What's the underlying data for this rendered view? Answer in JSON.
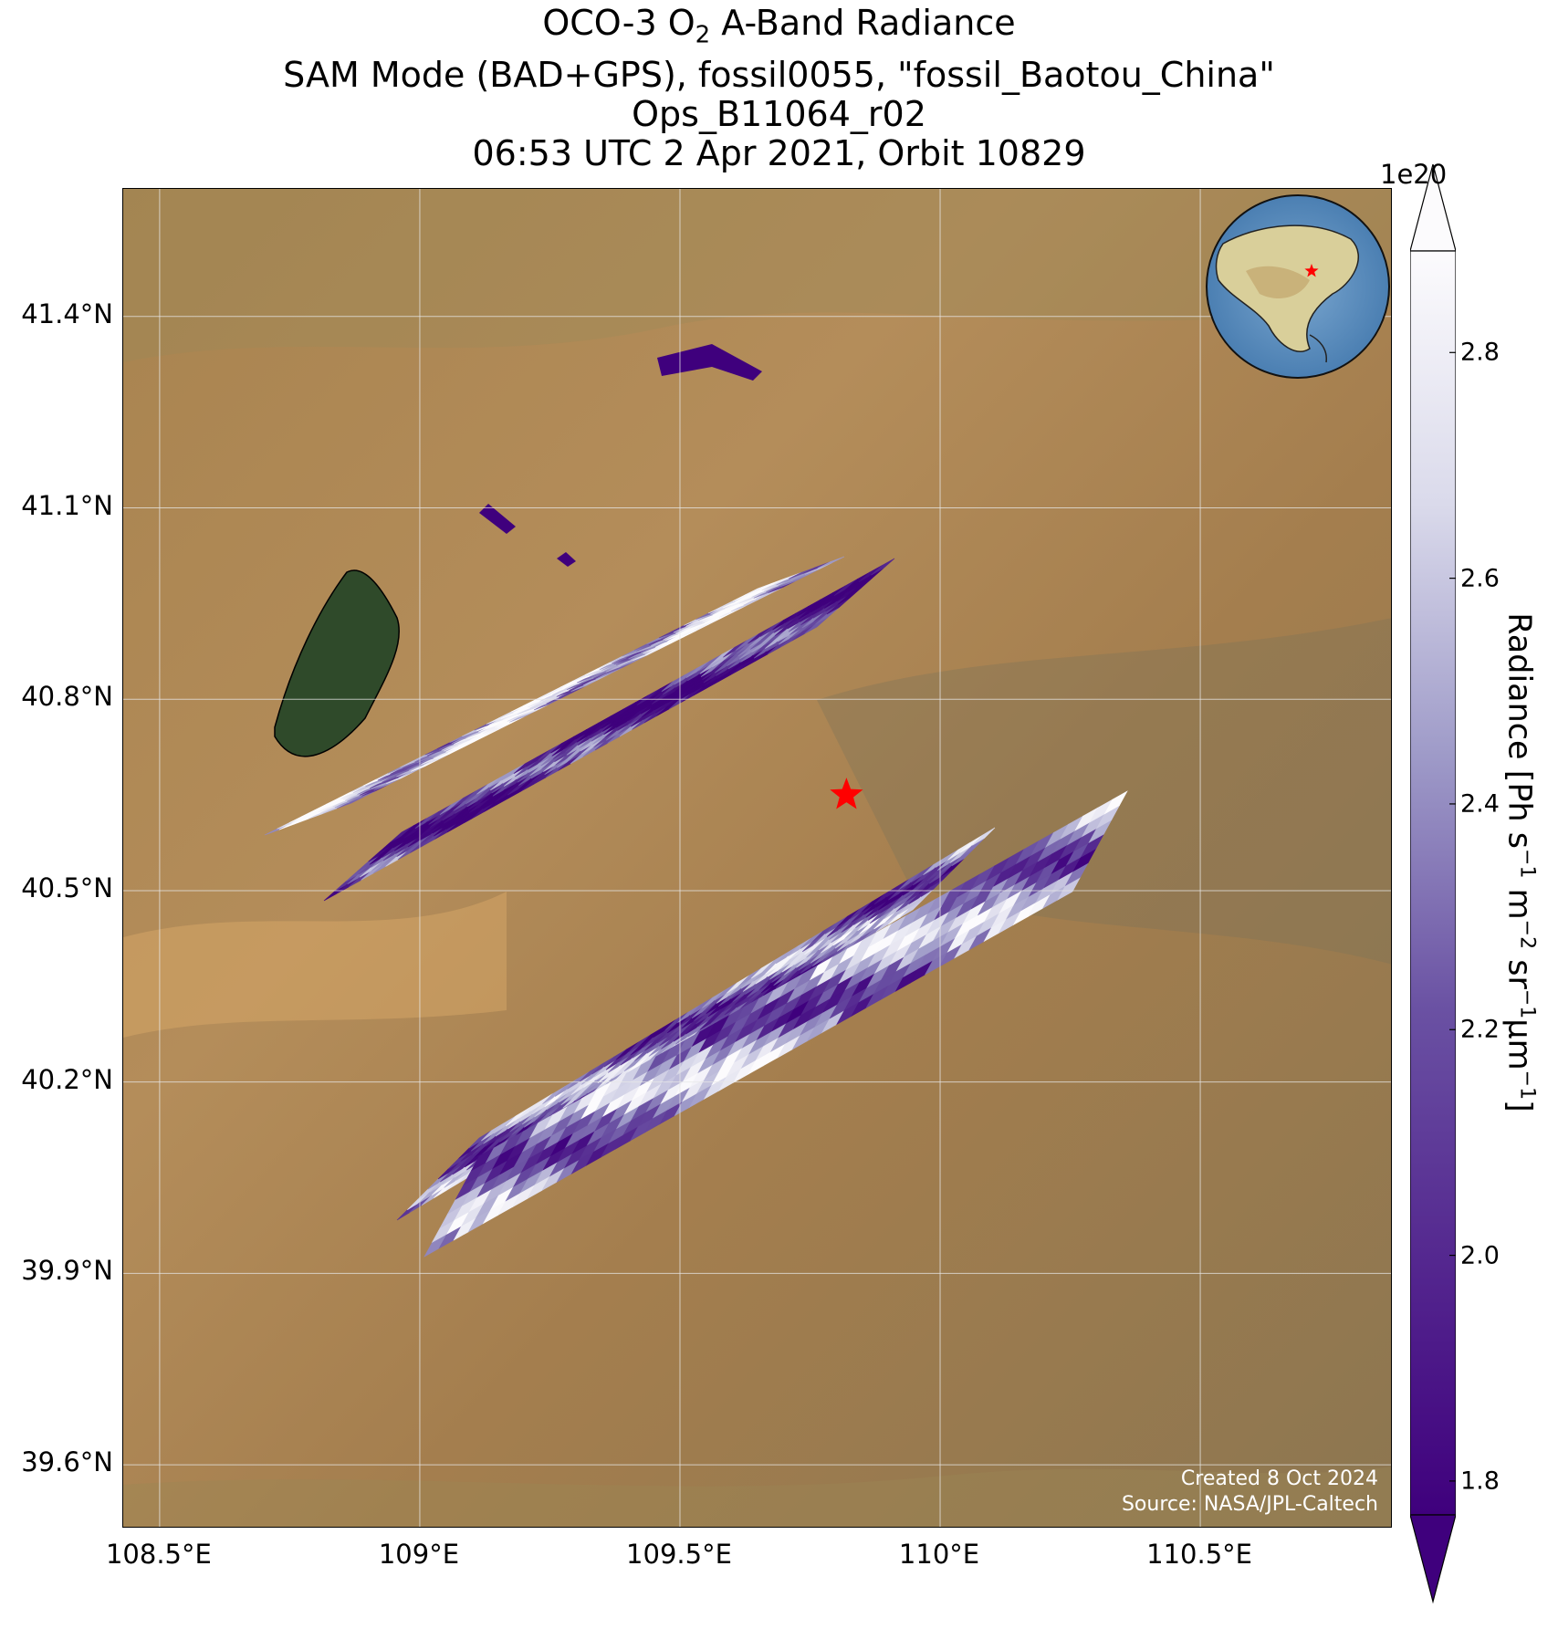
{
  "title": {
    "line1_pre": "OCO-3 O",
    "line1_sub": "2",
    "line1_post": " A-Band Radiance",
    "line2": "SAM Mode (BAD+GPS), fossil0055, \"fossil_Baotou_China\"",
    "line3": "Ops_B11064_r02",
    "line4": "06:53 UTC 2 Apr 2021, Orbit 10829"
  },
  "axes": {
    "lat_ticks": [
      "41.4°N",
      "41.1°N",
      "40.8°N",
      "40.5°N",
      "40.2°N",
      "39.9°N",
      "39.6°N"
    ],
    "lon_ticks": [
      "108.5°E",
      "109°E",
      "109.5°E",
      "110°E",
      "110.5°E"
    ],
    "lat_values": [
      41.4,
      41.1,
      40.8,
      40.5,
      40.2,
      39.9,
      39.6
    ],
    "lon_values": [
      108.5,
      109.0,
      109.5,
      110.0,
      110.5
    ],
    "lon_range": [
      108.43,
      110.87
    ],
    "lat_range": [
      39.5,
      41.6
    ],
    "grid": true
  },
  "colorbar": {
    "label_parts": [
      "Radiance [Ph s",
      "−1",
      " m",
      "−2",
      " sr",
      "−1",
      "μm",
      "−1",
      "]"
    ],
    "exponent": "1e20",
    "ticks": [
      "1.8",
      "2.0",
      "2.2",
      "2.4",
      "2.6",
      "2.8"
    ],
    "tick_values": [
      1.8,
      2.0,
      2.2,
      2.4,
      2.6,
      2.8
    ],
    "range": [
      1.77,
      2.89
    ],
    "extend": "both",
    "colormap": "Purples_r",
    "color_low": "#3f007d",
    "color_mid": "#9e9ac8",
    "color_high": "#fcfbfd"
  },
  "target": {
    "marker": "star-icon",
    "color": "#ff0000",
    "lon": 109.82,
    "lat": 40.65
  },
  "credits": {
    "created": "Created 8 Oct 2024",
    "source": "Source: NASA/JPL-Caltech"
  },
  "inset_globe": {
    "marker": "star-icon",
    "color": "#ff0000"
  }
}
